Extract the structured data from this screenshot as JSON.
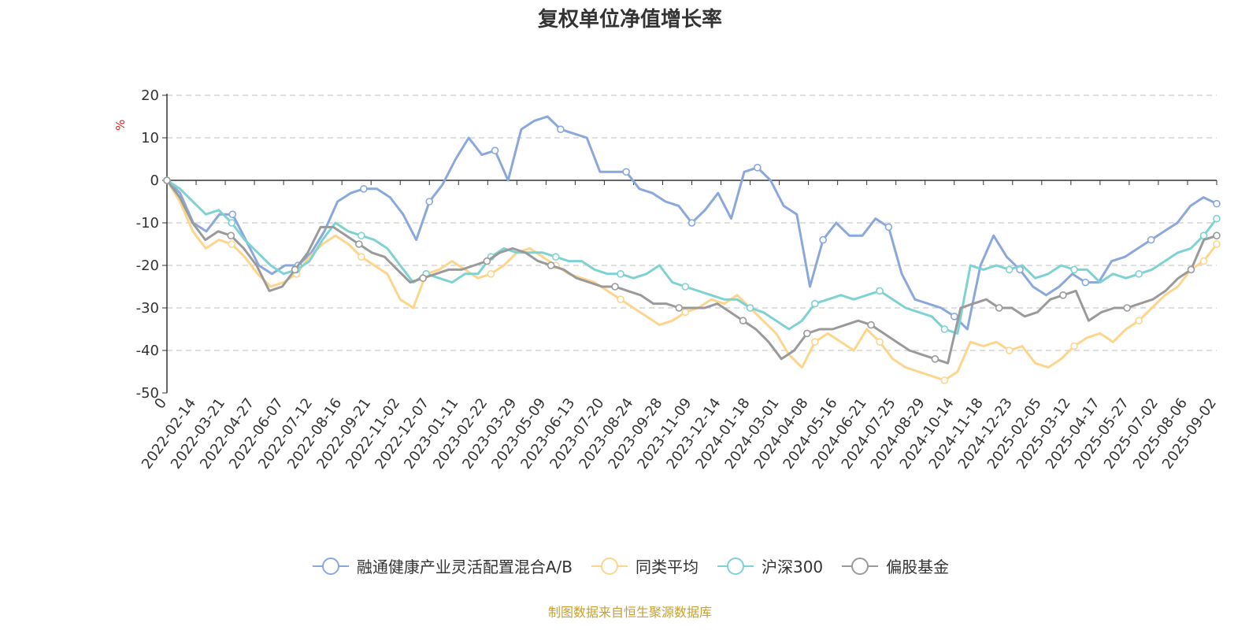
{
  "chart_data": {
    "type": "line",
    "title": "复权单位净值增长率",
    "ylabel": "%",
    "ylim": [
      -50,
      20
    ],
    "yticks": [
      -50,
      -40,
      -30,
      -20,
      -10,
      0,
      10,
      20
    ],
    "grid": true,
    "legend_position": "bottom",
    "x_tick_labels": [
      "0",
      "2022-02-14",
      "2022-03-21",
      "2022-04-27",
      "2022-06-07",
      "2022-07-12",
      "2022-08-16",
      "2022-09-21",
      "2022-11-02",
      "2022-12-07",
      "2023-01-11",
      "2023-02-22",
      "2023-03-29",
      "2023-05-09",
      "2023-06-13",
      "2023-07-20",
      "2023-08-24",
      "2023-09-28",
      "2023-11-09",
      "2023-12-14",
      "2024-01-18",
      "2024-03-01",
      "2024-04-08",
      "2024-05-16",
      "2024-06-21",
      "2024-07-25",
      "2024-08-29",
      "2024-10-14",
      "2024-11-18",
      "2024-12-23",
      "2025-02-05",
      "2025-03-12",
      "2025-04-17",
      "2025-05-27",
      "2025-07-02",
      "2025-08-06",
      "2025-09-02"
    ],
    "series": [
      {
        "name": "融通健康产业灵活配置混合A/B",
        "color": "#8aa8dc",
        "values": [
          0,
          -3,
          -10,
          -12,
          -8,
          -8,
          -14,
          -20,
          -22,
          -20,
          -20,
          -17,
          -12,
          -5,
          -3,
          -2,
          -2,
          -4,
          -8,
          -14,
          -5,
          -1,
          5,
          10,
          6,
          7,
          0,
          12,
          14,
          15,
          12,
          11,
          10,
          2,
          2,
          2,
          -2,
          -3,
          -5,
          -6,
          -10,
          -7,
          -3,
          -9,
          2,
          3,
          0,
          -6,
          -8,
          -25,
          -14,
          -10,
          -13,
          -13,
          -9,
          -11,
          -22,
          -28,
          -29,
          -30,
          -32,
          -35,
          -20,
          -13,
          -18,
          -21,
          -25,
          -27,
          -25,
          -22,
          -24,
          -24,
          -19,
          -18,
          -16,
          -14,
          -12,
          -10,
          -6,
          -4,
          -5.5
        ]
      },
      {
        "name": "同类平均",
        "color": "#fdd58c",
        "values": [
          0,
          -5,
          -12,
          -16,
          -14,
          -15,
          -18,
          -22,
          -25,
          -24,
          -22,
          -18,
          -15,
          -13,
          -15,
          -18,
          -20,
          -22,
          -28,
          -30,
          -22,
          -21,
          -19,
          -21,
          -23,
          -22,
          -20,
          -17,
          -16,
          -18,
          -20,
          -22,
          -23,
          -24,
          -26,
          -28,
          -30,
          -32,
          -34,
          -33,
          -31,
          -30,
          -28,
          -29,
          -27,
          -30,
          -33,
          -36,
          -41,
          -44,
          -38,
          -36,
          -38,
          -40,
          -35,
          -38,
          -42,
          -44,
          -45,
          -46,
          -47,
          -45,
          -38,
          -39,
          -38,
          -40,
          -39,
          -43,
          -44,
          -42,
          -39,
          -37,
          -36,
          -38,
          -35,
          -33,
          -30,
          -27,
          -25,
          -21,
          -19,
          -15
        ]
      },
      {
        "name": "沪深300",
        "color": "#7fd2d2",
        "values": [
          0,
          -2,
          -5,
          -8,
          -7,
          -10,
          -14,
          -17,
          -20,
          -22,
          -21,
          -19,
          -14,
          -10,
          -12,
          -13,
          -14,
          -16,
          -20,
          -24,
          -22,
          -23,
          -24,
          -22,
          -22,
          -18,
          -16,
          -17,
          -17,
          -17,
          -18,
          -19,
          -19,
          -21,
          -22,
          -22,
          -23,
          -22,
          -20,
          -24,
          -25,
          -26,
          -27,
          -28,
          -28,
          -30,
          -31,
          -33,
          -35,
          -33,
          -29,
          -28,
          -27,
          -28,
          -27,
          -26,
          -28,
          -30,
          -31,
          -32,
          -35,
          -36,
          -20,
          -21,
          -20,
          -21,
          -20,
          -23,
          -22,
          -20,
          -21,
          -21,
          -24,
          -22,
          -23,
          -22,
          -21,
          -19,
          -17,
          -16,
          -13,
          -9
        ]
      },
      {
        "name": "偏股基金",
        "color": "#9a9a9a",
        "values": [
          0,
          -4,
          -10,
          -14,
          -12,
          -13,
          -16,
          -20,
          -26,
          -25,
          -21,
          -17,
          -11,
          -11,
          -13,
          -15,
          -17,
          -18,
          -21,
          -24,
          -23,
          -22,
          -21,
          -21,
          -20,
          -19,
          -17,
          -16,
          -17,
          -19,
          -20,
          -21,
          -23,
          -24,
          -25,
          -25,
          -26,
          -27,
          -29,
          -29,
          -30,
          -30,
          -30,
          -29,
          -31,
          -33,
          -35,
          -38,
          -42,
          -40,
          -36,
          -35,
          -35,
          -34,
          -33,
          -34,
          -36,
          -38,
          -40,
          -41,
          -42,
          -43,
          -30,
          -29,
          -28,
          -30,
          -30,
          -32,
          -31,
          -28,
          -27,
          -26,
          -33,
          -31,
          -30,
          -30,
          -29,
          -28,
          -26,
          -23,
          -21,
          -14,
          -13
        ]
      }
    ]
  },
  "source_note": "制图数据来自恒生聚源数据库"
}
